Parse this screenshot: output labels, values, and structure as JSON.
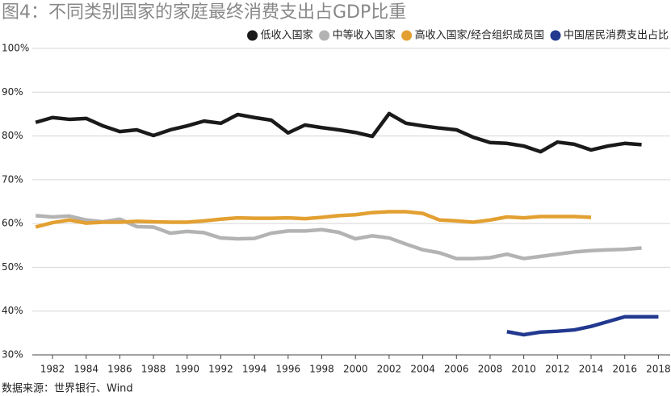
{
  "chart_data": {
    "type": "line",
    "title": "图4：不同类别国家的家庭最终消费支出占GDP比重",
    "source": "数据来源：世界银行、Wind",
    "xlim": [
      1980.8,
      2018.7
    ],
    "xticks": [
      1982,
      1984,
      1986,
      1988,
      1990,
      1992,
      1994,
      1996,
      1998,
      2000,
      2002,
      2004,
      2006,
      2008,
      2010,
      2012,
      2014,
      2016,
      2018
    ],
    "ylim": [
      30,
      100
    ],
    "yticks": [
      {
        "value": 30,
        "label": "30%"
      },
      {
        "value": 40,
        "label": "40%"
      },
      {
        "value": 50,
        "label": "50%"
      },
      {
        "value": 60,
        "label": "60%"
      },
      {
        "value": 70,
        "label": "70%"
      },
      {
        "value": 80,
        "label": "80%"
      },
      {
        "value": 90,
        "label": "90%"
      },
      {
        "value": 100,
        "label": "100%"
      }
    ],
    "grid": true,
    "legend": "top-right",
    "series": [
      {
        "name": "低收入国家",
        "color": "#1a1a1a",
        "x": [
          1981,
          1982,
          1983,
          1984,
          1985,
          1986,
          1987,
          1988,
          1989,
          1990,
          1991,
          1992,
          1993,
          1994,
          1995,
          1996,
          1997,
          1998,
          1999,
          2000,
          2001,
          2002,
          2003,
          2004,
          2005,
          2006,
          2007,
          2008,
          2009,
          2010,
          2011,
          2012,
          2013,
          2014,
          2015,
          2016,
          2017
        ],
        "values": [
          83.1,
          84.2,
          83.8,
          84,
          82.3,
          81,
          81.4,
          80.1,
          81.4,
          82.3,
          83.4,
          82.9,
          84.9,
          84.2,
          83.6,
          80.7,
          82.5,
          81.9,
          81.4,
          80.8,
          79.9,
          85.1,
          82.9,
          82.3,
          81.8,
          81.4,
          79.7,
          78.5,
          78.3,
          77.7,
          76.4,
          78.6,
          78.1,
          76.8,
          77.7,
          78.3,
          78.0
        ]
      },
      {
        "name": "中等收入国家",
        "color": "#b3b3b3",
        "x": [
          1981,
          1982,
          1983,
          1984,
          1985,
          1986,
          1987,
          1988,
          1989,
          1990,
          1991,
          1992,
          1993,
          1994,
          1995,
          1996,
          1997,
          1998,
          1999,
          2000,
          2001,
          2002,
          2003,
          2004,
          2005,
          2006,
          2007,
          2008,
          2009,
          2010,
          2011,
          2012,
          2013,
          2014,
          2015,
          2016,
          2017
        ],
        "values": [
          61.8,
          61.5,
          61.7,
          60.8,
          60.4,
          61,
          59.3,
          59.2,
          57.8,
          58.2,
          57.9,
          56.7,
          56.5,
          56.6,
          57.8,
          58.3,
          58.3,
          58.6,
          58,
          56.5,
          57.2,
          56.7,
          55.3,
          54,
          53.3,
          52,
          52,
          52.2,
          53,
          52,
          52.5,
          53,
          53.5,
          53.8,
          54,
          54.1,
          54.4
        ]
      },
      {
        "name": "高收入国家/经合组织成员国",
        "color": "#e3a032",
        "x": [
          1981,
          1982,
          1983,
          1984,
          1985,
          1986,
          1987,
          1988,
          1989,
          1990,
          1991,
          1992,
          1993,
          1994,
          1995,
          1996,
          1997,
          1998,
          1999,
          2000,
          2001,
          2002,
          2003,
          2004,
          2005,
          2006,
          2007,
          2008,
          2009,
          2010,
          2011,
          2012,
          2013,
          2014
        ],
        "values": [
          59.2,
          60.2,
          60.8,
          60.1,
          60.3,
          60.3,
          60.5,
          60.4,
          60.3,
          60.3,
          60.6,
          61,
          61.3,
          61.2,
          61.2,
          61.3,
          61.1,
          61.4,
          61.8,
          62,
          62.5,
          62.7,
          62.7,
          62.3,
          60.8,
          60.6,
          60.3,
          60.8,
          61.5,
          61.3,
          61.6,
          61.6,
          61.6,
          61.4
        ]
      },
      {
        "name": "中国居民消费支出占比",
        "color": "#22398f",
        "x": [
          2009,
          2010,
          2011,
          2012,
          2013,
          2014,
          2015,
          2016,
          2017,
          2018
        ],
        "values": [
          35.3,
          34.6,
          35.2,
          35.4,
          35.7,
          36.5,
          37.6,
          38.7,
          38.7,
          38.7
        ]
      }
    ]
  }
}
